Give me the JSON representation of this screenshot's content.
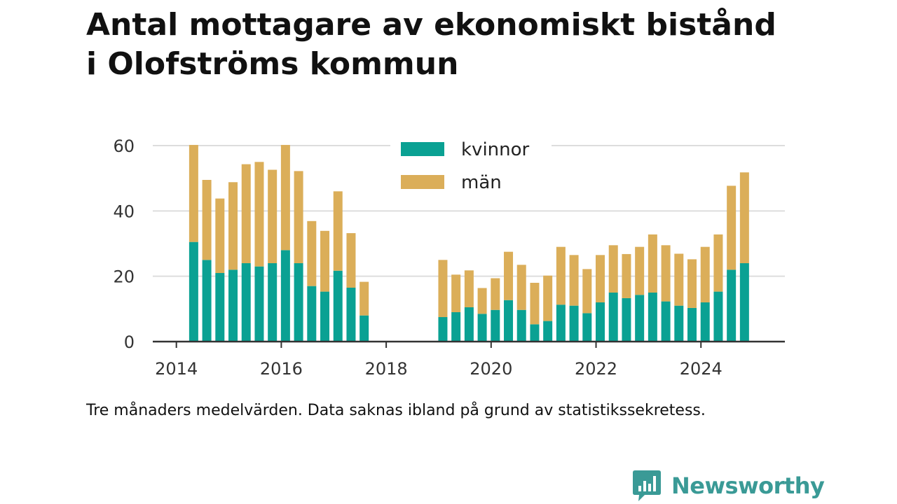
{
  "header": {
    "title_line1": "Antal mottagare av ekonomiskt bistånd",
    "title_line2": "i Olofströms kommun"
  },
  "footer": {
    "note": "Tre månaders medelvärden. Data saknas ibland på grund av statistikssekretess.",
    "brand": "Newsworthy",
    "logo_icon": "newsworthy-chart-bubble-icon"
  },
  "colors": {
    "kvinnor": "#0aa193",
    "man": "#dbae59",
    "grid": "#dddddd",
    "axis": "#333333",
    "brand": "#3a9a96"
  },
  "chart_data": {
    "type": "bar",
    "stacked": true,
    "xlim": [
      2013.55,
      2025.6
    ],
    "ylim": [
      0,
      60
    ],
    "x_ticks": [
      2014,
      2016,
      2018,
      2020,
      2022,
      2024
    ],
    "y_ticks": [
      0,
      20,
      40,
      60
    ],
    "grid": "horizontal",
    "legend_position": "top-center",
    "x": [
      2014.33,
      2014.58,
      2014.83,
      2015.08,
      2015.33,
      2015.58,
      2015.83,
      2016.08,
      2016.33,
      2016.58,
      2016.83,
      2017.08,
      2017.33,
      2017.58,
      2019.08,
      2019.33,
      2019.58,
      2019.83,
      2020.08,
      2020.33,
      2020.58,
      2020.83,
      2021.08,
      2021.33,
      2021.58,
      2021.83,
      2022.08,
      2022.33,
      2022.58,
      2022.83,
      2023.08,
      2023.33,
      2023.58,
      2023.83,
      2024.08,
      2024.33,
      2024.58,
      2024.83
    ],
    "series": [
      {
        "name": "kvinnor",
        "values": [
          30.5,
          25,
          21,
          22,
          24,
          23,
          24,
          28,
          24,
          17,
          15.3,
          21.7,
          16.5,
          8,
          7.5,
          9,
          10.5,
          8.5,
          9.7,
          12.7,
          9.7,
          5.3,
          6.3,
          11.3,
          11,
          8.7,
          12,
          15,
          13.3,
          14.3,
          15,
          12.3,
          11,
          10.3,
          12,
          15.3,
          22,
          24
        ]
      },
      {
        "name": "män",
        "values": [
          29.7,
          24.5,
          22.8,
          26.8,
          30.3,
          32,
          28.6,
          32.2,
          28.2,
          19.9,
          18.6,
          24.3,
          16.7,
          10.3,
          17.5,
          11.5,
          11.3,
          7.9,
          9.7,
          14.8,
          13.8,
          12.7,
          13.9,
          17.7,
          15.5,
          13.5,
          14.5,
          14.5,
          13.5,
          14.7,
          17.8,
          17.2,
          15.9,
          14.9,
          17,
          17.5,
          25.7,
          27.8
        ]
      }
    ]
  }
}
